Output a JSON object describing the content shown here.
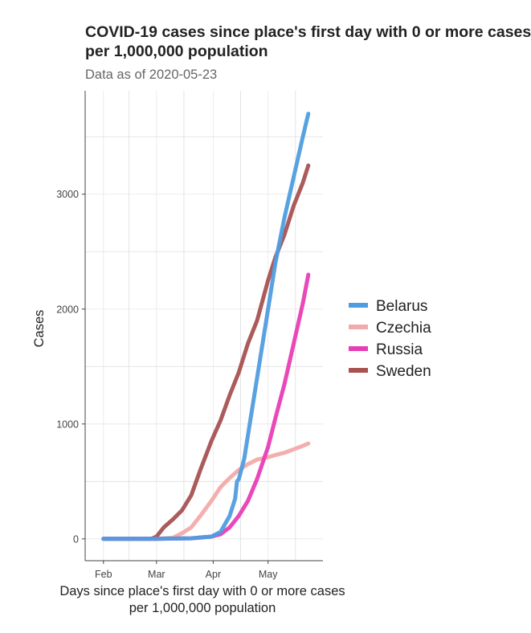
{
  "title_line1": "COVID-19 cases since place's first day with 0 or more cases",
  "title_line2": "per 1,000,000 population",
  "subtitle": "Data as of 2020-05-23",
  "chart_data": {
    "type": "line",
    "xlabel_line1": "Days since place's first day with 0 or more cases",
    "xlabel_line2": "per 1,000,000 population",
    "ylabel": "Cases",
    "x_ticks": [
      "Feb",
      "Mar",
      "Apr",
      "May"
    ],
    "y_ticks": [
      "0",
      "1000",
      "2000",
      "3000"
    ],
    "x_range": [
      "2020-01-22",
      "2020-05-31"
    ],
    "ylim": [
      -190,
      3900
    ],
    "grid": true,
    "legend_position": "right",
    "series": [
      {
        "name": "Belarus",
        "color": "#4f9de0",
        "x": [
          "2020-02-01",
          "2020-03-01",
          "2020-03-20",
          "2020-03-31",
          "2020-04-05",
          "2020-04-10",
          "2020-04-13",
          "2020-04-14",
          "2020-04-15",
          "2020-04-18",
          "2020-04-20",
          "2020-04-25",
          "2020-05-01",
          "2020-05-05",
          "2020-05-10",
          "2020-05-15",
          "2020-05-20",
          "2020-05-23"
        ],
        "y": [
          0,
          0,
          5,
          20,
          60,
          200,
          350,
          500,
          520,
          700,
          900,
          1400,
          2000,
          2400,
          2800,
          3150,
          3500,
          3700
        ]
      },
      {
        "name": "Czechia",
        "color": "#f3aaaa",
        "x": [
          "2020-02-01",
          "2020-03-01",
          "2020-03-10",
          "2020-03-15",
          "2020-03-20",
          "2020-03-25",
          "2020-03-31",
          "2020-04-05",
          "2020-04-10",
          "2020-04-15",
          "2020-04-20",
          "2020-04-25",
          "2020-05-01",
          "2020-05-05",
          "2020-05-10",
          "2020-05-15",
          "2020-05-20",
          "2020-05-23"
        ],
        "y": [
          0,
          0,
          10,
          50,
          100,
          200,
          330,
          450,
          530,
          600,
          650,
          690,
          710,
          730,
          750,
          780,
          810,
          830
        ]
      },
      {
        "name": "Russia",
        "color": "#e83eb5",
        "x": [
          "2020-02-01",
          "2020-03-01",
          "2020-03-20",
          "2020-03-31",
          "2020-04-05",
          "2020-04-10",
          "2020-04-15",
          "2020-04-20",
          "2020-04-25",
          "2020-05-01",
          "2020-05-05",
          "2020-05-10",
          "2020-05-15",
          "2020-05-20",
          "2020-05-23"
        ],
        "y": [
          0,
          0,
          5,
          20,
          40,
          100,
          200,
          330,
          520,
          800,
          1050,
          1350,
          1700,
          2050,
          2300
        ]
      },
      {
        "name": "Sweden",
        "color": "#a85252",
        "x": [
          "2020-02-01",
          "2020-02-27",
          "2020-03-01",
          "2020-03-05",
          "2020-03-10",
          "2020-03-15",
          "2020-03-20",
          "2020-03-25",
          "2020-03-31",
          "2020-04-05",
          "2020-04-10",
          "2020-04-15",
          "2020-04-20",
          "2020-04-25",
          "2020-05-01",
          "2020-05-05",
          "2020-05-10",
          "2020-05-15",
          "2020-05-20",
          "2020-05-23"
        ],
        "y": [
          0,
          0,
          20,
          100,
          170,
          250,
          380,
          600,
          850,
          1030,
          1250,
          1450,
          1700,
          1900,
          2250,
          2450,
          2650,
          2900,
          3100,
          3250
        ]
      }
    ]
  }
}
